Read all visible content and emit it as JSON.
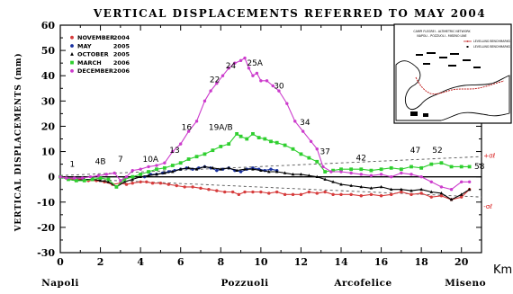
{
  "chart_data": {
    "type": "line",
    "title": "VERTICAL DISPLACEMENTS REFERRED TO MAY 2004",
    "ylabel": "VERTICAL DISPLACEMENTS (mm)",
    "xlabel": "Km",
    "xlim": [
      0,
      21
    ],
    "ylim": [
      -30,
      60
    ],
    "x_ticks": [
      0,
      2,
      4,
      6,
      8,
      10,
      12,
      14,
      16,
      18,
      20
    ],
    "y_ticks": [
      -30,
      -20,
      -10,
      0,
      10,
      20,
      30,
      40,
      50,
      60
    ],
    "grid": false,
    "legend_position": "top-left",
    "place_labels": [
      {
        "x": 0,
        "text": "Napoli"
      },
      {
        "x": 9.2,
        "text": "Pozzuoli"
      },
      {
        "x": 15.1,
        "text": "Arcofelice"
      },
      {
        "x": 20.2,
        "text": "Miseno"
      }
    ],
    "benchmark_labels": [
      {
        "x": 0.6,
        "y": 4,
        "text": "1"
      },
      {
        "x": 2.0,
        "y": 5,
        "text": "4B"
      },
      {
        "x": 3.0,
        "y": 6,
        "text": "7"
      },
      {
        "x": 4.5,
        "y": 6,
        "text": "10A"
      },
      {
        "x": 5.7,
        "y": 9.5,
        "text": "13"
      },
      {
        "x": 6.3,
        "y": 18.5,
        "text": "16"
      },
      {
        "x": 8.0,
        "y": 18.5,
        "text": "19A/B"
      },
      {
        "x": 7.7,
        "y": 37.5,
        "text": "22"
      },
      {
        "x": 8.5,
        "y": 43,
        "text": "24"
      },
      {
        "x": 9.7,
        "y": 44,
        "text": "25A"
      },
      {
        "x": 10.9,
        "y": 35,
        "text": "30"
      },
      {
        "x": 12.2,
        "y": 20.5,
        "text": "34"
      },
      {
        "x": 13.2,
        "y": 9,
        "text": "37"
      },
      {
        "x": 15.0,
        "y": 6.5,
        "text": "42"
      },
      {
        "x": 17.7,
        "y": 9.5,
        "text": "47"
      },
      {
        "x": 18.8,
        "y": 9.5,
        "text": "52"
      },
      {
        "x": 20.9,
        "y": 3,
        "text": "58"
      }
    ],
    "error_band": {
      "upper": [
        [
          0,
          0.5
        ],
        [
          21,
          8
        ]
      ],
      "lower": [
        [
          0,
          -0.5
        ],
        [
          21,
          -8
        ]
      ],
      "labels": [
        {
          "x": 21.1,
          "y": 7.5,
          "text": "+σℓ"
        },
        {
          "x": 21.1,
          "y": -12.5,
          "text": "-σℓ"
        }
      ]
    },
    "series": [
      {
        "name": "NOVEMBER 2004",
        "color": "#d63c3c",
        "marker": "circle",
        "points": [
          [
            0,
            0
          ],
          [
            0.3,
            -0.5
          ],
          [
            0.7,
            -1
          ],
          [
            1.0,
            -1
          ],
          [
            1.4,
            -1.5
          ],
          [
            1.8,
            -1.5
          ],
          [
            2.2,
            -2
          ],
          [
            2.6,
            -3
          ],
          [
            3.0,
            -2.5
          ],
          [
            3.3,
            -3
          ],
          [
            3.6,
            -2.5
          ],
          [
            4.0,
            -2
          ],
          [
            4.3,
            -2
          ],
          [
            4.6,
            -2.5
          ],
          [
            5.0,
            -2.5
          ],
          [
            5.4,
            -3
          ],
          [
            5.8,
            -3.5
          ],
          [
            6.2,
            -4
          ],
          [
            6.6,
            -4
          ],
          [
            7.0,
            -4.5
          ],
          [
            7.4,
            -5
          ],
          [
            7.8,
            -5.5
          ],
          [
            8.2,
            -6
          ],
          [
            8.6,
            -6
          ],
          [
            8.9,
            -7
          ],
          [
            9.2,
            -6
          ],
          [
            9.6,
            -6
          ],
          [
            10.0,
            -6
          ],
          [
            10.4,
            -6.5
          ],
          [
            10.8,
            -6
          ],
          [
            11.2,
            -7
          ],
          [
            11.6,
            -7
          ],
          [
            12.0,
            -7
          ],
          [
            12.4,
            -6
          ],
          [
            12.8,
            -6.5
          ],
          [
            13.2,
            -6
          ],
          [
            13.6,
            -7
          ],
          [
            14.0,
            -7
          ],
          [
            14.5,
            -7
          ],
          [
            15.0,
            -7.5
          ],
          [
            15.5,
            -7
          ],
          [
            16.0,
            -7.5
          ],
          [
            16.5,
            -7
          ],
          [
            17.0,
            -6
          ],
          [
            17.5,
            -7
          ],
          [
            18.0,
            -6.5
          ],
          [
            18.5,
            -8
          ],
          [
            19.0,
            -7.5
          ],
          [
            19.5,
            -9
          ],
          [
            20.0,
            -8
          ],
          [
            20.4,
            -5
          ]
        ]
      },
      {
        "name": "MAY 2005",
        "color": "#1830a0",
        "marker": "circle",
        "points": [
          [
            4.2,
            0
          ],
          [
            4.5,
            1
          ],
          [
            4.8,
            1
          ],
          [
            5.1,
            1.5
          ],
          [
            5.4,
            2
          ],
          [
            5.7,
            2.5
          ],
          [
            6.0,
            3
          ],
          [
            6.3,
            3.5
          ],
          [
            6.6,
            3
          ],
          [
            6.9,
            3.5
          ],
          [
            7.2,
            4
          ],
          [
            7.5,
            3.5
          ],
          [
            7.8,
            2.5
          ],
          [
            8.1,
            3
          ],
          [
            8.4,
            3.5
          ],
          [
            8.7,
            2.5
          ],
          [
            9.0,
            2
          ],
          [
            9.3,
            3
          ],
          [
            9.6,
            3.5
          ],
          [
            9.9,
            3
          ],
          [
            10.2,
            2.5
          ],
          [
            10.5,
            3
          ],
          [
            10.8,
            2.5
          ]
        ]
      },
      {
        "name": "OCTOBER 2005",
        "color": "#000000",
        "marker": "triangle",
        "points": [
          [
            0,
            0
          ],
          [
            0.4,
            -1
          ],
          [
            0.8,
            -1.5
          ],
          [
            1.2,
            -1
          ],
          [
            1.6,
            -1
          ],
          [
            2.0,
            -1.5
          ],
          [
            2.4,
            -2
          ],
          [
            2.8,
            -4
          ],
          [
            3.2,
            -2
          ],
          [
            3.6,
            -1
          ],
          [
            4.0,
            0
          ],
          [
            4.4,
            0.5
          ],
          [
            4.8,
            1
          ],
          [
            5.2,
            1.5
          ],
          [
            5.6,
            2
          ],
          [
            6.0,
            3
          ],
          [
            6.4,
            3.5
          ],
          [
            6.8,
            3
          ],
          [
            7.2,
            4
          ],
          [
            7.6,
            3.5
          ],
          [
            8.0,
            3
          ],
          [
            8.4,
            3.5
          ],
          [
            8.8,
            2.5
          ],
          [
            9.2,
            3
          ],
          [
            9.6,
            3
          ],
          [
            10.0,
            2.5
          ],
          [
            10.4,
            2
          ],
          [
            10.8,
            2
          ],
          [
            11.2,
            1.5
          ],
          [
            11.6,
            1
          ],
          [
            12.0,
            1
          ],
          [
            12.4,
            0.5
          ],
          [
            12.8,
            0
          ],
          [
            13.2,
            -1
          ],
          [
            13.6,
            -2
          ],
          [
            14.0,
            -3
          ],
          [
            14.5,
            -3.5
          ],
          [
            15.0,
            -4
          ],
          [
            15.5,
            -4.5
          ],
          [
            16.0,
            -4
          ],
          [
            16.5,
            -5
          ],
          [
            17.0,
            -5
          ],
          [
            17.5,
            -5.5
          ],
          [
            18.0,
            -5
          ],
          [
            18.5,
            -6
          ],
          [
            19.0,
            -6.5
          ],
          [
            19.5,
            -9
          ],
          [
            20.0,
            -7
          ],
          [
            20.4,
            -5
          ]
        ]
      },
      {
        "name": "MARCH 2006",
        "color": "#2fcf2f",
        "marker": "square",
        "points": [
          [
            0,
            0
          ],
          [
            0.4,
            -1
          ],
          [
            0.8,
            -1.5
          ],
          [
            1.2,
            -1.5
          ],
          [
            1.6,
            -1
          ],
          [
            2.0,
            -0.5
          ],
          [
            2.4,
            -1
          ],
          [
            2.8,
            -4
          ],
          [
            3.2,
            -1
          ],
          [
            3.6,
            0
          ],
          [
            4.0,
            1
          ],
          [
            4.4,
            2
          ],
          [
            4.8,
            3
          ],
          [
            5.2,
            3.5
          ],
          [
            5.6,
            4.5
          ],
          [
            6.0,
            5.5
          ],
          [
            6.4,
            7
          ],
          [
            6.8,
            8
          ],
          [
            7.2,
            9
          ],
          [
            7.6,
            10.5
          ],
          [
            8.0,
            12
          ],
          [
            8.4,
            13
          ],
          [
            8.8,
            17
          ],
          [
            9.0,
            16
          ],
          [
            9.3,
            15
          ],
          [
            9.6,
            17
          ],
          [
            9.9,
            15.5
          ],
          [
            10.2,
            15
          ],
          [
            10.5,
            14
          ],
          [
            10.8,
            13.5
          ],
          [
            11.2,
            12.5
          ],
          [
            11.6,
            11
          ],
          [
            12.0,
            9
          ],
          [
            12.4,
            7.5
          ],
          [
            12.8,
            6
          ],
          [
            13.2,
            2
          ],
          [
            13.6,
            2.5
          ],
          [
            14.0,
            3
          ],
          [
            14.5,
            3
          ],
          [
            15.0,
            3
          ],
          [
            15.5,
            2.5
          ],
          [
            16.0,
            3
          ],
          [
            16.5,
            3.5
          ],
          [
            17.0,
            3
          ],
          [
            17.5,
            4
          ],
          [
            18.0,
            3.5
          ],
          [
            18.5,
            5
          ],
          [
            19.0,
            5.5
          ],
          [
            19.5,
            4
          ],
          [
            20.0,
            4
          ],
          [
            20.4,
            4
          ]
        ]
      },
      {
        "name": "DECEMBER 2006",
        "color": "#cc3ccc",
        "marker": "circle",
        "points": [
          [
            0,
            0
          ],
          [
            0.3,
            -0.5
          ],
          [
            0.7,
            -0.5
          ],
          [
            1.1,
            -0.5
          ],
          [
            1.5,
            0
          ],
          [
            1.9,
            0.5
          ],
          [
            2.3,
            1
          ],
          [
            2.7,
            1.5
          ],
          [
            3.0,
            -1.5
          ],
          [
            3.3,
            0
          ],
          [
            3.6,
            2.5
          ],
          [
            4.0,
            3
          ],
          [
            4.4,
            4
          ],
          [
            4.8,
            4.5
          ],
          [
            5.2,
            5.5
          ],
          [
            5.6,
            10
          ],
          [
            6.0,
            13
          ],
          [
            6.4,
            18
          ],
          [
            6.8,
            22
          ],
          [
            7.2,
            30
          ],
          [
            7.5,
            34
          ],
          [
            7.8,
            37
          ],
          [
            8.1,
            40
          ],
          [
            8.4,
            43
          ],
          [
            8.7,
            45
          ],
          [
            9.0,
            46
          ],
          [
            9.2,
            47
          ],
          [
            9.4,
            43
          ],
          [
            9.6,
            40
          ],
          [
            9.8,
            41
          ],
          [
            10.0,
            38
          ],
          [
            10.3,
            38
          ],
          [
            10.6,
            36
          ],
          [
            10.9,
            34
          ],
          [
            11.3,
            29
          ],
          [
            11.7,
            22
          ],
          [
            12.1,
            18
          ],
          [
            12.5,
            14
          ],
          [
            12.8,
            11
          ],
          [
            13.1,
            4
          ],
          [
            13.5,
            2
          ],
          [
            14.0,
            2
          ],
          [
            14.5,
            1.5
          ],
          [
            15.0,
            1
          ],
          [
            15.5,
            0.5
          ],
          [
            16.0,
            1
          ],
          [
            16.5,
            0
          ],
          [
            17.0,
            1.5
          ],
          [
            17.5,
            1
          ],
          [
            18.0,
            0
          ],
          [
            18.5,
            -2
          ],
          [
            19.0,
            -4
          ],
          [
            19.5,
            -5
          ],
          [
            20.0,
            -2
          ],
          [
            20.4,
            -2
          ]
        ]
      }
    ]
  },
  "inset_map": {
    "caption_lines": [
      "CAMPI FLEGREI - ALTIMETRIC NETWORK",
      "NAPOLI - POZZUOLI - MISENO LINE"
    ],
    "legend": [
      "LEVELLING BENCHMARKS",
      "LEVELLING BENCHMARKS"
    ],
    "frame_color": "#000000",
    "route_color": "#c02020"
  }
}
